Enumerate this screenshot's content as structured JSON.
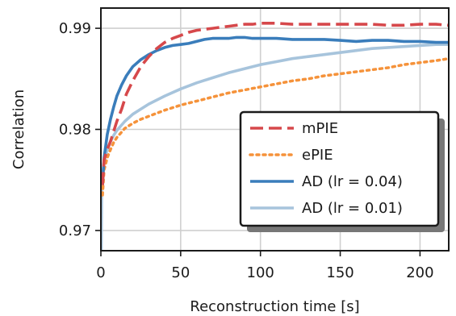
{
  "chart_data": {
    "type": "line",
    "title": "",
    "xlabel": "Reconstruction time [s]",
    "ylabel": "Correlation",
    "xlim": [
      0,
      218
    ],
    "ylim": [
      0.968,
      0.992
    ],
    "x_ticks": [
      0,
      50,
      100,
      150,
      200
    ],
    "x_tick_labels": [
      "0",
      "50",
      "100",
      "150",
      "200"
    ],
    "y_ticks": [
      0.97,
      0.98,
      0.99
    ],
    "y_tick_labels": [
      "0.97",
      "0.98",
      "0.99"
    ],
    "grid": true,
    "legend_position": "lower-right",
    "series": [
      {
        "name": "mPIE",
        "color": "#d6484b",
        "style": "dashed",
        "x": [
          1,
          2,
          4,
          6,
          8,
          10,
          13,
          16,
          20,
          25,
          30,
          35,
          40,
          45,
          50,
          55,
          60,
          65,
          70,
          75,
          80,
          85,
          90,
          95,
          100,
          110,
          120,
          130,
          140,
          150,
          160,
          170,
          180,
          190,
          200,
          210,
          218
        ],
        "y": [
          0.9745,
          0.977,
          0.978,
          0.9788,
          0.9798,
          0.9808,
          0.982,
          0.9835,
          0.9848,
          0.9862,
          0.9872,
          0.988,
          0.9886,
          0.989,
          0.9893,
          0.9896,
          0.9898,
          0.9899,
          0.99,
          0.9901,
          0.9902,
          0.9903,
          0.9904,
          0.9904,
          0.9905,
          0.9905,
          0.9904,
          0.9904,
          0.9904,
          0.9904,
          0.9904,
          0.9904,
          0.9903,
          0.9903,
          0.9904,
          0.9904,
          0.9903
        ]
      },
      {
        "name": "ePIE",
        "color": "#f5923a",
        "style": "dotted",
        "x": [
          1,
          2,
          4,
          6,
          8,
          10,
          15,
          20,
          25,
          30,
          40,
          50,
          60,
          70,
          80,
          90,
          100,
          110,
          120,
          130,
          140,
          150,
          160,
          170,
          180,
          190,
          200,
          210,
          218
        ],
        "y": [
          0.9735,
          0.976,
          0.9772,
          0.978,
          0.9787,
          0.9792,
          0.9801,
          0.9806,
          0.981,
          0.9813,
          0.9819,
          0.9824,
          0.9828,
          0.9832,
          0.9836,
          0.9839,
          0.9842,
          0.9845,
          0.9848,
          0.985,
          0.9853,
          0.9855,
          0.9857,
          0.9859,
          0.9861,
          0.9864,
          0.9866,
          0.9868,
          0.987
        ]
      },
      {
        "name": "AD (lr = 0.04)",
        "color": "#3a7dbb",
        "style": "solid",
        "x": [
          1,
          2,
          4,
          6,
          8,
          10,
          13,
          16,
          20,
          25,
          30,
          35,
          40,
          45,
          50,
          55,
          60,
          65,
          70,
          75,
          80,
          85,
          90,
          95,
          100,
          110,
          120,
          130,
          140,
          150,
          160,
          170,
          180,
          190,
          200,
          210,
          218
        ],
        "y": [
          0.9745,
          0.9772,
          0.9795,
          0.981,
          0.9822,
          0.9833,
          0.9844,
          0.9853,
          0.9862,
          0.9869,
          0.9874,
          0.9878,
          0.9881,
          0.9883,
          0.9884,
          0.9885,
          0.9887,
          0.9889,
          0.989,
          0.989,
          0.989,
          0.9891,
          0.9891,
          0.989,
          0.989,
          0.989,
          0.9889,
          0.9889,
          0.9889,
          0.9888,
          0.9887,
          0.9888,
          0.9888,
          0.9887,
          0.9887,
          0.9886,
          0.9886
        ]
      },
      {
        "name": "AD (lr = 0.01)",
        "color": "#a7c4dc",
        "style": "solid",
        "x": [
          0.2,
          0.5,
          1,
          2,
          4,
          6,
          8,
          10,
          15,
          20,
          25,
          30,
          40,
          50,
          60,
          70,
          80,
          90,
          100,
          110,
          120,
          130,
          140,
          150,
          160,
          170,
          180,
          190,
          200,
          210,
          218
        ],
        "y": [
          0.9675,
          0.974,
          0.9755,
          0.9768,
          0.978,
          0.9788,
          0.9794,
          0.9799,
          0.9808,
          0.9815,
          0.982,
          0.9825,
          0.9833,
          0.984,
          0.9846,
          0.9851,
          0.9856,
          0.986,
          0.9864,
          0.9867,
          0.987,
          0.9872,
          0.9874,
          0.9876,
          0.9878,
          0.988,
          0.9881,
          0.9882,
          0.9883,
          0.9884,
          0.9884
        ]
      }
    ]
  }
}
